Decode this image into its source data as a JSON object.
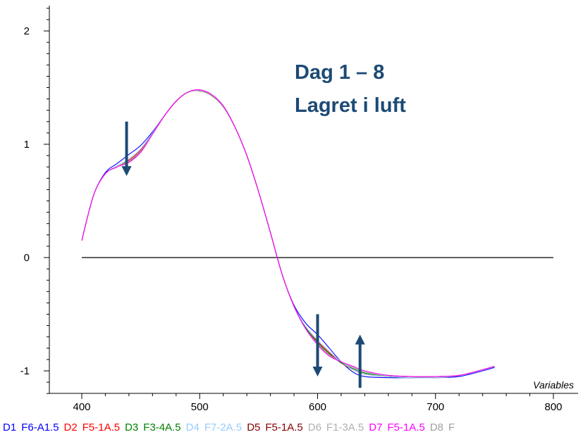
{
  "chart_data": {
    "type": "line",
    "xlabel": "Variables",
    "xlim": [
      400,
      800
    ],
    "ylim": [
      -1.25,
      2.25
    ],
    "x_ticks": [
      "400",
      "500",
      "600",
      "700",
      "800"
    ],
    "y_ticks": [
      "-1",
      "0",
      "1",
      "2"
    ],
    "annotation_lines": [
      "Dag 1 – 8",
      "Lagret i luft"
    ],
    "arrows": [
      {
        "x": 438,
        "from_y": 1.2,
        "to_y": 0.72,
        "direction": "down"
      },
      {
        "x": 600,
        "from_y": -0.5,
        "to_y": -1.05,
        "direction": "down"
      },
      {
        "x": 636,
        "from_y": -1.15,
        "to_y": -0.68,
        "direction": "up"
      }
    ],
    "series": [
      {
        "name": "F6-A1.5",
        "legend_label": "D1",
        "color": "#0000ff",
        "x": [
          400,
          410,
          420,
          430,
          440,
          450,
          460,
          470,
          480,
          490,
          500,
          510,
          520,
          530,
          540,
          550,
          560,
          570,
          580,
          590,
          600,
          610,
          620,
          630,
          640,
          660,
          680,
          700,
          720,
          740,
          750
        ],
        "y": [
          0.15,
          0.55,
          0.75,
          0.83,
          0.91,
          0.99,
          1.11,
          1.25,
          1.38,
          1.46,
          1.47,
          1.43,
          1.33,
          1.15,
          0.9,
          0.58,
          0.22,
          -0.15,
          -0.42,
          -0.58,
          -0.68,
          -0.8,
          -0.92,
          -1.01,
          -1.05,
          -1.06,
          -1.06,
          -1.06,
          -1.05,
          -1.0,
          -0.97
        ]
      },
      {
        "name": "F5-1A.5",
        "legend_label": "D2",
        "color": "#ff0000",
        "x": [
          400,
          410,
          420,
          430,
          440,
          450,
          460,
          470,
          480,
          490,
          500,
          510,
          520,
          530,
          540,
          550,
          560,
          570,
          580,
          590,
          600,
          610,
          620,
          630,
          640,
          660,
          680,
          700,
          720,
          740,
          750
        ],
        "y": [
          0.15,
          0.55,
          0.74,
          0.8,
          0.86,
          0.95,
          1.1,
          1.25,
          1.38,
          1.46,
          1.48,
          1.44,
          1.34,
          1.15,
          0.9,
          0.58,
          0.22,
          -0.15,
          -0.43,
          -0.62,
          -0.74,
          -0.84,
          -0.93,
          -0.99,
          -1.03,
          -1.05,
          -1.06,
          -1.06,
          -1.04,
          -0.99,
          -0.96
        ]
      },
      {
        "name": "F3-4A.5",
        "legend_label": "D3",
        "color": "#008000",
        "x": [
          400,
          410,
          420,
          430,
          440,
          450,
          460,
          470,
          480,
          490,
          500,
          510,
          520,
          530,
          540,
          550,
          560,
          570,
          580,
          590,
          600,
          610,
          620,
          630,
          640,
          660,
          680,
          700,
          720,
          740,
          750
        ],
        "y": [
          0.15,
          0.55,
          0.74,
          0.8,
          0.85,
          0.93,
          1.09,
          1.25,
          1.38,
          1.46,
          1.47,
          1.43,
          1.33,
          1.15,
          0.9,
          0.58,
          0.22,
          -0.15,
          -0.43,
          -0.62,
          -0.75,
          -0.85,
          -0.93,
          -0.98,
          -1.02,
          -1.05,
          -1.06,
          -1.06,
          -1.04,
          -0.99,
          -0.96
        ]
      },
      {
        "name": "F7-2A.5",
        "legend_label": "D4",
        "color": "#99ccff",
        "x": [
          400,
          410,
          420,
          430,
          440,
          450,
          460,
          470,
          480,
          490,
          500,
          510,
          520,
          530,
          540,
          550,
          560,
          570,
          580,
          590,
          600,
          610,
          620,
          630,
          640,
          660,
          680,
          700,
          720,
          740,
          750
        ],
        "y": [
          0.15,
          0.55,
          0.74,
          0.81,
          0.87,
          0.96,
          1.1,
          1.25,
          1.38,
          1.46,
          1.48,
          1.44,
          1.34,
          1.15,
          0.9,
          0.58,
          0.22,
          -0.15,
          -0.43,
          -0.61,
          -0.73,
          -0.83,
          -0.92,
          -0.99,
          -1.03,
          -1.05,
          -1.06,
          -1.06,
          -1.04,
          -0.99,
          -0.96
        ]
      },
      {
        "name": "F5-1A.5",
        "legend_label": "D5",
        "color": "#800000",
        "x": [
          400,
          410,
          420,
          430,
          440,
          450,
          460,
          470,
          480,
          490,
          500,
          510,
          520,
          530,
          540,
          550,
          560,
          570,
          580,
          590,
          600,
          610,
          620,
          630,
          640,
          660,
          680,
          700,
          720,
          740,
          750
        ],
        "y": [
          0.15,
          0.55,
          0.74,
          0.8,
          0.85,
          0.94,
          1.09,
          1.25,
          1.38,
          1.46,
          1.47,
          1.43,
          1.33,
          1.15,
          0.9,
          0.58,
          0.22,
          -0.15,
          -0.43,
          -0.63,
          -0.76,
          -0.86,
          -0.92,
          -0.97,
          -1.01,
          -1.04,
          -1.05,
          -1.05,
          -1.04,
          -0.99,
          -0.96
        ]
      },
      {
        "name": "F1-3A.5",
        "legend_label": "D6",
        "color": "#b0b0b0",
        "x": [
          400,
          410,
          420,
          430,
          440,
          450,
          460,
          470,
          480,
          490,
          500,
          510,
          520,
          530,
          540,
          550,
          560,
          570,
          580,
          590,
          600,
          610,
          620,
          630,
          640,
          660,
          680,
          700,
          720,
          740,
          750
        ],
        "y": [
          0.15,
          0.55,
          0.74,
          0.8,
          0.85,
          0.94,
          1.09,
          1.25,
          1.38,
          1.46,
          1.47,
          1.43,
          1.33,
          1.15,
          0.9,
          0.58,
          0.22,
          -0.15,
          -0.43,
          -0.63,
          -0.76,
          -0.86,
          -0.92,
          -0.97,
          -1.01,
          -1.04,
          -1.05,
          -1.05,
          -1.04,
          -0.99,
          -0.96
        ]
      },
      {
        "name": "F5-1A.5",
        "legend_label": "D7",
        "color": "#ff00ff",
        "x": [
          400,
          410,
          420,
          430,
          440,
          450,
          460,
          470,
          480,
          490,
          500,
          510,
          520,
          530,
          540,
          550,
          560,
          570,
          580,
          590,
          600,
          610,
          620,
          630,
          640,
          660,
          680,
          700,
          720,
          740,
          750
        ],
        "y": [
          0.15,
          0.55,
          0.74,
          0.8,
          0.84,
          0.93,
          1.09,
          1.25,
          1.38,
          1.46,
          1.48,
          1.44,
          1.34,
          1.15,
          0.9,
          0.58,
          0.22,
          -0.15,
          -0.43,
          -0.63,
          -0.77,
          -0.87,
          -0.92,
          -0.96,
          -1.0,
          -1.04,
          -1.05,
          -1.05,
          -1.04,
          -0.99,
          -0.96
        ]
      }
    ]
  },
  "legend": [
    {
      "text": "D1",
      "color": "#0000ff"
    },
    {
      "text": "F6-A1.5",
      "color": "#0000ff"
    },
    {
      "text": "D2",
      "color": "#ff0000"
    },
    {
      "text": "F5-1A.5",
      "color": "#ff0000"
    },
    {
      "text": "D3",
      "color": "#008000"
    },
    {
      "text": "F3-4A.5",
      "color": "#008000"
    },
    {
      "text": "D4",
      "color": "#99ccff"
    },
    {
      "text": "F7-2A.5",
      "color": "#99ccff"
    },
    {
      "text": "D5",
      "color": "#800000"
    },
    {
      "text": "F5-1A.5",
      "color": "#800000"
    },
    {
      "text": "D6",
      "color": "#b0b0b0"
    },
    {
      "text": "F1-3A.5",
      "color": "#b0b0b0"
    },
    {
      "text": "D7",
      "color": "#ff00ff"
    },
    {
      "text": "F5-1A.5",
      "color": "#ff00ff"
    },
    {
      "text": "D8",
      "color": "#a0a0a0"
    },
    {
      "text": "F",
      "color": "#a0a0a0"
    }
  ],
  "colors": {
    "axis": "#000000",
    "annotation": "#1c4a75",
    "arrow": "#1c4a75"
  }
}
